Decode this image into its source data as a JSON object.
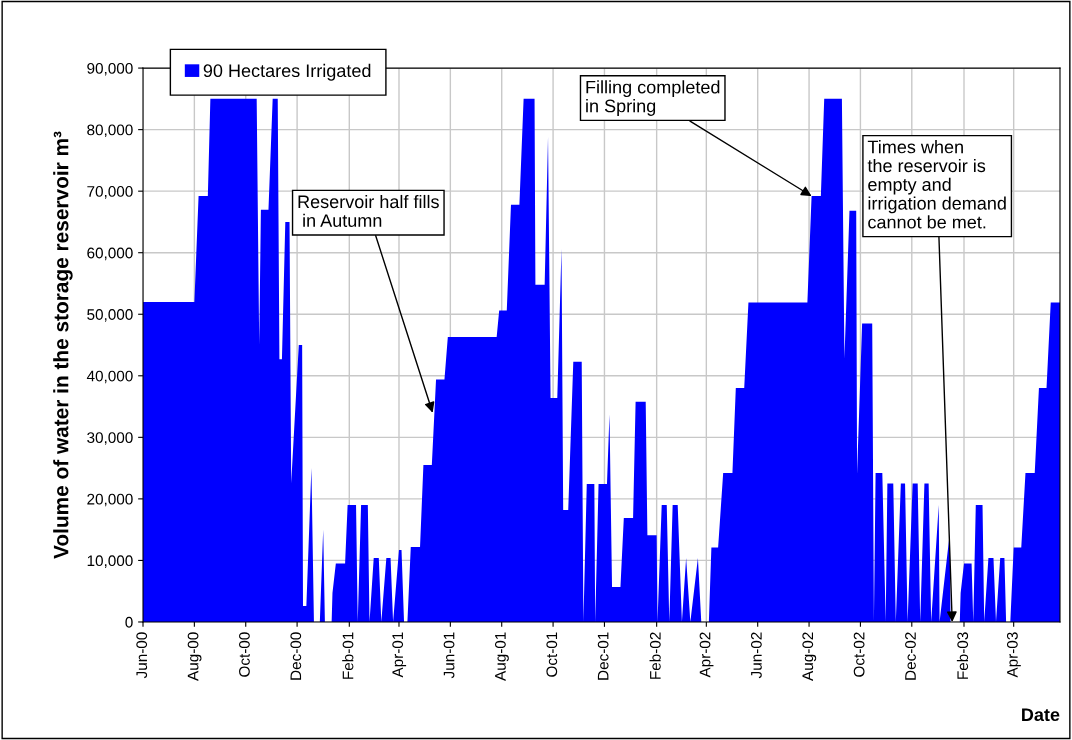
{
  "chart_data": {
    "type": "area",
    "ylabel": "Volume of water in the storage reservoir m³",
    "xlabel": "Date",
    "legend": "top left",
    "grid": true,
    "xlim": [
      "2000-06-01",
      "2003-05-26"
    ],
    "ylim": [
      0,
      90000
    ],
    "yticks": [
      0,
      {
        "value": 10000,
        "label": "10,000"
      },
      {
        "value": 20000,
        "label": "20,000"
      },
      {
        "value": 30000,
        "label": "30,000"
      },
      {
        "value": 40000,
        "label": "40,000"
      },
      {
        "value": 50000,
        "label": "50,000"
      },
      {
        "value": 60000,
        "label": "60,000"
      },
      {
        "value": 70000,
        "label": "70,000"
      },
      {
        "value": 80000,
        "label": "80,000"
      },
      {
        "value": 90000,
        "label": "90,000"
      }
    ],
    "xticks": [
      {
        "value": "2000-06-01",
        "label": "Jun-00"
      },
      {
        "value": "2000-08-01",
        "label": "Aug-00"
      },
      {
        "value": "2000-10-01",
        "label": "Oct-00"
      },
      {
        "value": "2000-12-01",
        "label": "Dec-00"
      },
      {
        "value": "2001-02-01",
        "label": "Feb-01"
      },
      {
        "value": "2001-04-01",
        "label": "Apr-01"
      },
      {
        "value": "2001-06-01",
        "label": "Jun-01"
      },
      {
        "value": "2001-08-01",
        "label": "Aug-01"
      },
      {
        "value": "2001-10-01",
        "label": "Oct-01"
      },
      {
        "value": "2001-12-01",
        "label": "Dec-01"
      },
      {
        "value": "2002-02-01",
        "label": "Feb-02"
      },
      {
        "value": "2002-04-01",
        "label": "Apr-02"
      },
      {
        "value": "2002-06-01",
        "label": "Jun-02"
      },
      {
        "value": "2002-08-01",
        "label": "Aug-02"
      },
      {
        "value": "2002-10-01",
        "label": "Oct-02"
      },
      {
        "value": "2002-12-01",
        "label": "Dec-02"
      },
      {
        "value": "2003-02-01",
        "label": "Feb-03"
      },
      {
        "value": "2003-04-01",
        "label": "Apr-03"
      }
    ],
    "annotations": [
      {
        "text": "Reservoir half fills\n in Autumn",
        "x": "2001-05-11",
        "y": 34000
      },
      {
        "text": "Filling completed\nin Spring",
        "x": "2002-08-04",
        "y": 69200
      },
      {
        "text": "Times when\nthe reservoir is\nempty and\nirrigation demand\ncannot be met.",
        "x": "2003-01-18",
        "y": 0
      }
    ],
    "series": [
      {
        "name": "90 Hectares Irrigated",
        "color": "#0000ff",
        "x": [
          "2000-06-01",
          "2000-08-01",
          "2000-08-06",
          "2000-08-17",
          "2000-08-20",
          "2000-10-14",
          "2000-10-17",
          "2000-10-19",
          "2000-10-28",
          "2000-11-02",
          "2000-11-08",
          "2000-11-10",
          "2000-11-13",
          "2000-11-17",
          "2000-11-22",
          "2000-11-24",
          "2000-12-03",
          "2000-12-07",
          "2000-12-08",
          "2000-12-12",
          "2000-12-18",
          "2000-12-21",
          "2000-12-28",
          "2001-01-01",
          "2001-01-03",
          "2001-01-11",
          "2001-01-12",
          "2001-01-16",
          "2001-01-27",
          "2001-01-30",
          "2001-02-09",
          "2001-02-11",
          "2001-02-15",
          "2001-02-23",
          "2001-02-25",
          "2001-03-02",
          "2001-03-08",
          "2001-03-11",
          "2001-03-17",
          "2001-03-22",
          "2001-03-25",
          "2001-04-01",
          "2001-04-04",
          "2001-04-07",
          "2001-04-11",
          "2001-04-15",
          "2001-04-26",
          "2001-04-30",
          "2001-05-10",
          "2001-05-15",
          "2001-05-25",
          "2001-05-29",
          "2001-07-26",
          "2001-07-29",
          "2001-08-07",
          "2001-08-12",
          "2001-08-22",
          "2001-08-27",
          "2001-09-09",
          "2001-09-10",
          "2001-09-21",
          "2001-09-25",
          "2001-09-28",
          "2001-10-06",
          "2001-10-11",
          "2001-10-13",
          "2001-10-19",
          "2001-10-25",
          "2001-11-04",
          "2001-11-06",
          "2001-11-10",
          "2001-11-19",
          "2001-11-20",
          "2001-11-24",
          "2001-12-04",
          "2001-12-07",
          "2001-12-10",
          "2001-12-20",
          "2001-12-24",
          "2002-01-04",
          "2002-01-07",
          "2002-01-19",
          "2002-01-21",
          "2002-02-01",
          "2002-02-02",
          "2002-02-07",
          "2002-02-13",
          "2002-02-16",
          "2002-02-20",
          "2002-02-26",
          "2002-03-03",
          "2002-03-08",
          "2002-03-13",
          "2002-03-22",
          "2002-03-26",
          "2002-04-04",
          "2002-04-07",
          "2002-04-15",
          "2002-04-21",
          "2002-05-02",
          "2002-05-06",
          "2002-05-16",
          "2002-05-21",
          "2002-07-30",
          "2002-08-04",
          "2002-08-15",
          "2002-08-19",
          "2002-09-09",
          "2002-09-12",
          "2002-09-18",
          "2002-09-26",
          "2002-09-27",
          "2002-10-03",
          "2002-10-15",
          "2002-10-17",
          "2002-10-19",
          "2002-10-27",
          "2002-10-31",
          "2002-11-02",
          "2002-11-09",
          "2002-11-12",
          "2002-11-18",
          "2002-11-23",
          "2002-11-26",
          "2002-12-02",
          "2002-12-08",
          "2002-12-11",
          "2002-12-16",
          "2002-12-21",
          "2002-12-24",
          "2003-01-02",
          "2003-01-03",
          "2003-01-15",
          "2003-01-16",
          "2003-01-27",
          "2003-01-28",
          "2003-02-01",
          "2003-02-10",
          "2003-02-12",
          "2003-02-15",
          "2003-02-23",
          "2003-02-25",
          "2003-03-02",
          "2003-03-08",
          "2003-03-11",
          "2003-03-16",
          "2003-03-21",
          "2003-03-23",
          "2003-03-28",
          "2003-04-01",
          "2003-04-10",
          "2003-04-15",
          "2003-04-26",
          "2003-05-01",
          "2003-05-10",
          "2003-05-15",
          "2003-05-26"
        ],
        "values": [
          52000,
          52000,
          69200,
          69200,
          85000,
          85000,
          45000,
          67000,
          67000,
          85000,
          85000,
          42700,
          42700,
          65000,
          65000,
          22600,
          45000,
          45000,
          2600,
          2600,
          25000,
          0,
          0,
          15000,
          0,
          0,
          4700,
          9500,
          9500,
          19000,
          19000,
          0,
          19000,
          19000,
          0,
          10400,
          10400,
          0,
          10400,
          10400,
          0,
          11700,
          11700,
          0,
          0,
          12200,
          12200,
          25500,
          25500,
          39400,
          39400,
          46300,
          46300,
          50600,
          50600,
          67800,
          67800,
          85000,
          85000,
          54800,
          54800,
          78800,
          36400,
          36400,
          60600,
          18200,
          18200,
          42300,
          42300,
          0,
          22400,
          22400,
          0,
          22400,
          22400,
          33700,
          5700,
          5700,
          16900,
          16900,
          35800,
          35800,
          14100,
          14100,
          0,
          19000,
          19000,
          0,
          19000,
          19000,
          0,
          10400,
          0,
          10400,
          0,
          0,
          12100,
          12100,
          24200,
          24200,
          38000,
          38000,
          51900,
          51900,
          69200,
          69200,
          85000,
          85000,
          42800,
          66800,
          66800,
          24000,
          48500,
          48500,
          0,
          24200,
          24200,
          0,
          22500,
          22500,
          0,
          22500,
          22500,
          0,
          22500,
          22500,
          0,
          22500,
          22500,
          0,
          19000,
          0,
          14300,
          0,
          0,
          4700,
          9500,
          9500,
          0,
          19000,
          19000,
          0,
          10400,
          10400,
          0,
          10400,
          10400,
          0,
          0,
          12100,
          12100,
          24200,
          24200,
          38000,
          38000,
          51900,
          51900
        ]
      }
    ]
  }
}
